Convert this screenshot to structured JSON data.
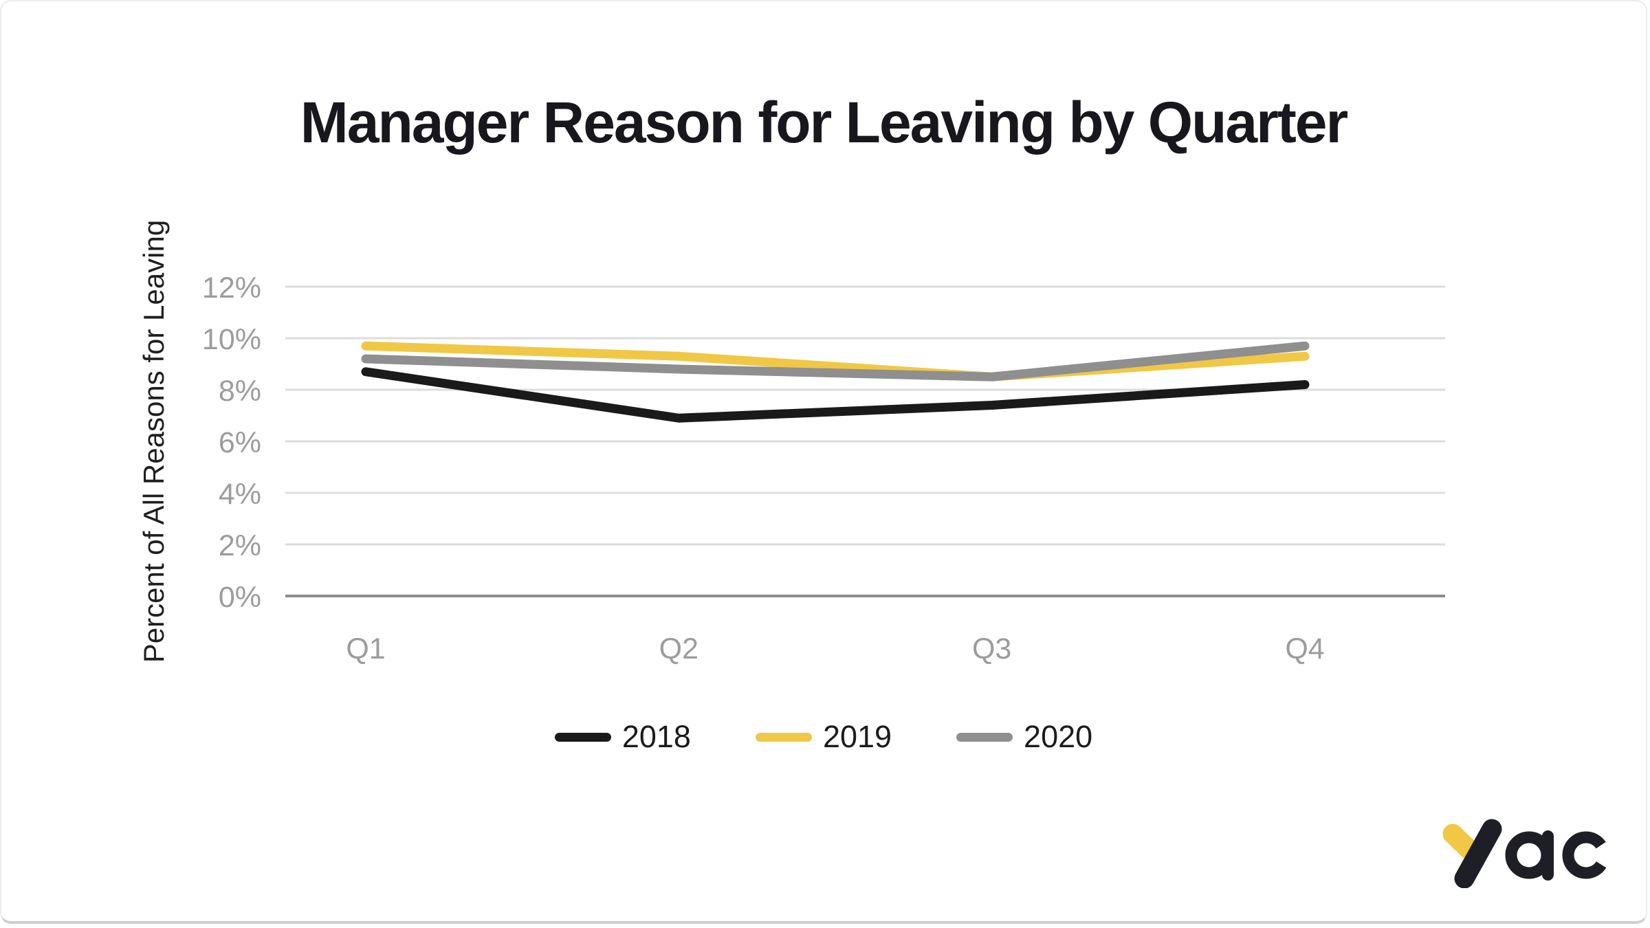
{
  "chart_data": {
    "type": "line",
    "title": "Manager Reason for Leaving by Quarter",
    "xlabel": "",
    "ylabel": "Percent of All Reasons for Leaving",
    "categories": [
      "Q1",
      "Q2",
      "Q3",
      "Q4"
    ],
    "series": [
      {
        "name": "2018",
        "color": "#1a1a1a",
        "values": [
          8.7,
          6.9,
          7.4,
          8.2
        ]
      },
      {
        "name": "2019",
        "color": "#f0c845",
        "values": [
          9.7,
          9.3,
          8.5,
          9.3
        ]
      },
      {
        "name": "2020",
        "color": "#8f8f8f",
        "values": [
          9.2,
          8.8,
          8.5,
          9.7
        ]
      }
    ],
    "ylim": [
      0,
      12
    ],
    "yticks": [
      0,
      2,
      4,
      6,
      8,
      10,
      12
    ],
    "ytick_labels": [
      "0%",
      "2%",
      "4%",
      "6%",
      "8%",
      "10%",
      "12%"
    ],
    "grid": "horizontal",
    "legend_position": "bottom",
    "colors": {
      "gridline": "#dcdcdc",
      "zero_line": "#8c8c8c",
      "tick_label": "#9c9c9c",
      "title_text": "#17171d",
      "axis_label_text": "#1f1f1f",
      "legend_text": "#1b1b1b"
    }
  },
  "logo": {
    "text": "yac",
    "brand_yellow": "#f0c845",
    "brand_dark": "#1e1e26"
  }
}
